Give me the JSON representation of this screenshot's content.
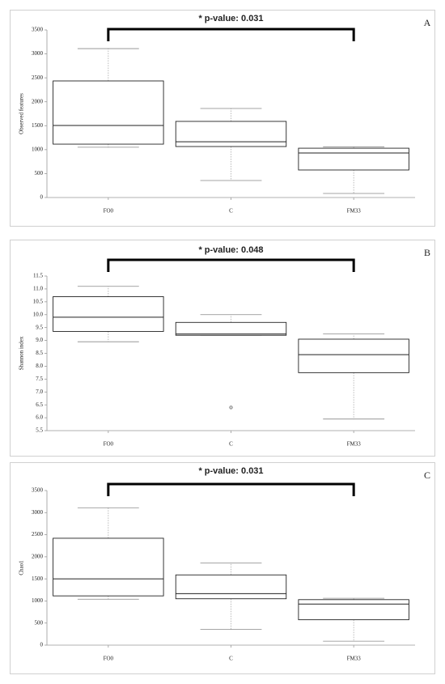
{
  "chart_data": [
    {
      "type": "box",
      "title": "* p-value: 0.031",
      "panel": "A",
      "ylabel": "Observed features",
      "categories": [
        "FO0",
        "C",
        "FM33"
      ],
      "boxes": [
        {
          "min": 1050,
          "q1": 1115,
          "median": 1505,
          "q3": 2435,
          "max": 3110
        },
        {
          "min": 355,
          "q1": 1065,
          "median": 1165,
          "q3": 1590,
          "max": 1860
        },
        {
          "min": 85,
          "q1": 575,
          "median": 930,
          "q3": 1030,
          "max": 1060
        }
      ],
      "outliers": [
        [],
        [],
        []
      ],
      "ylim": [
        0,
        3500
      ],
      "yticks": [
        0,
        500,
        1000,
        1500,
        2000,
        2500,
        3000,
        3500
      ]
    },
    {
      "type": "box",
      "title": "* p-value: 0.048",
      "panel": "B",
      "ylabel": "Shannon index",
      "categories": [
        "FO0",
        "C",
        "FM33"
      ],
      "boxes": [
        {
          "min": 8.95,
          "q1": 9.35,
          "median": 9.9,
          "q3": 10.7,
          "max": 11.1
        },
        {
          "min": 9.2,
          "q1": 9.2,
          "median": 9.25,
          "q3": 9.7,
          "max": 10.0
        },
        {
          "min": 5.95,
          "q1": 7.75,
          "median": 8.45,
          "q3": 9.05,
          "max": 9.25
        }
      ],
      "outliers": [
        [],
        [
          6.4
        ],
        []
      ],
      "ylim": [
        5.5,
        11.5
      ],
      "yticks": [
        5.5,
        {
          "value": 6,
          "label": "6.0"
        },
        6.5,
        {
          "value": 7,
          "label": "7.0"
        },
        7.5,
        {
          "value": 8,
          "label": "8.0"
        },
        8.5,
        {
          "value": 9,
          "label": "9.0"
        },
        9.5,
        {
          "value": 10,
          "label": "10.0"
        },
        10.5,
        {
          "value": 11,
          "label": "11.0"
        },
        11.5
      ]
    },
    {
      "type": "box",
      "title": "* p-value: 0.031",
      "panel": "C",
      "ylabel": "Chao1",
      "categories": [
        "FO0",
        "C",
        "FM33"
      ],
      "boxes": [
        {
          "min": 1040,
          "q1": 1115,
          "median": 1500,
          "q3": 2420,
          "max": 3110
        },
        {
          "min": 355,
          "q1": 1050,
          "median": 1165,
          "q3": 1590,
          "max": 1860
        },
        {
          "min": 90,
          "q1": 575,
          "median": 930,
          "q3": 1030,
          "max": 1060
        }
      ],
      "outliers": [
        [],
        [],
        []
      ],
      "ylim": [
        0,
        3500
      ],
      "yticks": [
        0,
        500,
        1000,
        1500,
        2000,
        2500,
        3000,
        3500
      ]
    }
  ]
}
